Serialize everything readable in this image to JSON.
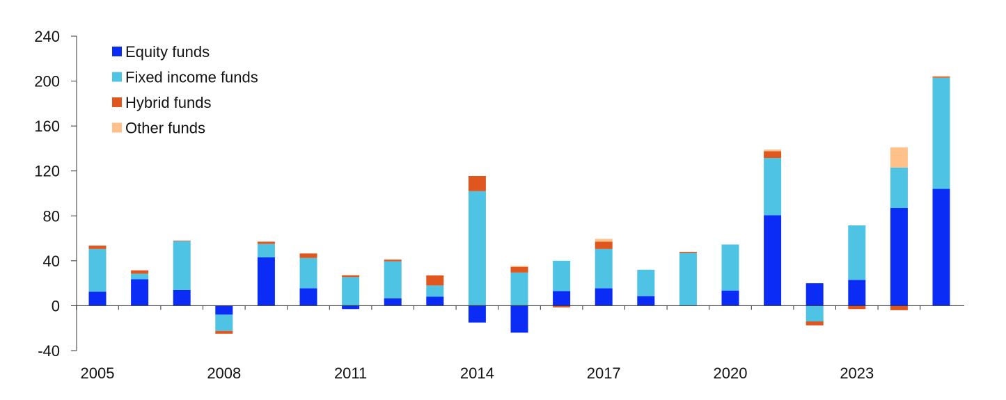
{
  "chart_data": {
    "type": "bar",
    "stacked": true,
    "x": [
      2005,
      2006,
      2007,
      2008,
      2009,
      2010,
      2011,
      2012,
      2013,
      2014,
      2015,
      2016,
      2017,
      2018,
      2019,
      2020,
      2021,
      2022,
      2023,
      2024,
      2025
    ],
    "xtick_labels": [
      "2005",
      "2008",
      "2011",
      "2014",
      "2017",
      "2020",
      "2023"
    ],
    "xtick_values": [
      2005,
      2008,
      2011,
      2014,
      2017,
      2020,
      2023
    ],
    "ytick_labels": [
      "240",
      "200",
      "160",
      "120",
      "80",
      "40",
      "0",
      "-40"
    ],
    "ytick_values": [
      240,
      200,
      160,
      120,
      80,
      40,
      0,
      -40
    ],
    "ylim": [
      -40,
      240
    ],
    "title": "",
    "xlabel": "",
    "ylabel": "",
    "grid": false,
    "legend_position": "top-left",
    "series": [
      {
        "name": "Equity funds",
        "color": "#0a2cf5",
        "values": [
          12.5,
          23.5,
          14,
          -8,
          43,
          15.5,
          -3,
          6.5,
          8,
          -15,
          -24,
          13,
          15.5,
          8.5,
          0,
          13.5,
          80.5,
          20,
          23,
          87,
          104
        ]
      },
      {
        "name": "Fixed income funds",
        "color": "#4fc3e4",
        "values": [
          38,
          5,
          43.5,
          -14.5,
          12,
          27,
          25.5,
          33,
          10,
          102,
          29.5,
          27,
          35,
          23.5,
          47,
          41,
          51,
          -14,
          48.5,
          36,
          99
        ]
      },
      {
        "name": "Hybrid funds",
        "color": "#e0561f",
        "values": [
          3,
          3,
          0.5,
          -2.5,
          2,
          4,
          1.5,
          1.5,
          9,
          13.5,
          5,
          -1.5,
          6.5,
          0,
          1,
          0,
          6,
          -3.5,
          -3,
          -4,
          1
        ]
      },
      {
        "name": "Other funds",
        "color": "#ffc08a",
        "values": [
          0,
          0,
          0,
          0,
          0,
          0,
          0.5,
          0,
          0,
          0,
          1,
          0,
          2.5,
          0,
          0,
          0,
          1.5,
          0,
          0,
          18,
          0.5
        ]
      }
    ]
  }
}
